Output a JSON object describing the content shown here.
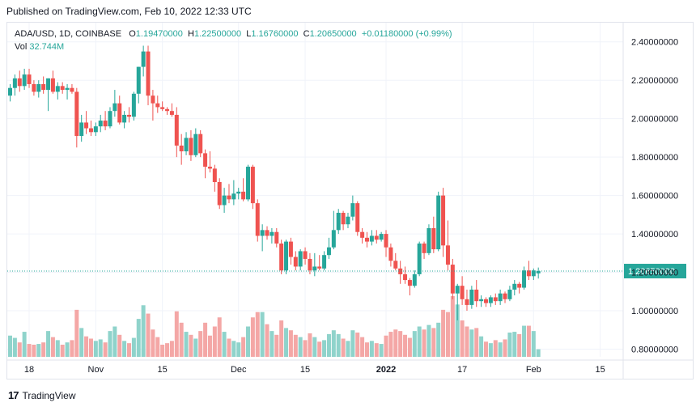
{
  "header": {
    "published": "Published on TradingView.com, Feb 10, 2022 12:33 UTC"
  },
  "legend": {
    "symbol": "ADA/USD, 1D, COINBASE",
    "o_label": "O",
    "o": "1.19470000",
    "h_label": "H",
    "h": "1.22500000",
    "l_label": "L",
    "l": "1.16760000",
    "c_label": "C",
    "c": "1.20650000",
    "change": "+0.01180000 (+0.99%)",
    "vol_label": "Vol",
    "vol": "32.744M"
  },
  "footer": {
    "brand": "TradingView",
    "logo": "17"
  },
  "colors": {
    "up": "#26a69a",
    "down": "#ef5350",
    "up_vol": "#8fd3cb",
    "down_vol": "#f4a7a6",
    "price_line": "#26a69a"
  },
  "chart_data": {
    "type": "candlestick",
    "symbol": "ADA/USD, 1D, COINBASE",
    "ylim": [
      0.76,
      2.5
    ],
    "y_ticks": [
      0.8,
      1.0,
      1.2,
      1.4,
      1.6,
      1.8,
      2.0,
      2.2,
      2.4
    ],
    "y_tick_labels": [
      "0.80000000",
      "1.00000000",
      "1.20000000",
      "1.40000000",
      "1.60000000",
      "1.80000000",
      "2.00000000",
      "2.20000000",
      "2.40000000"
    ],
    "last_price": 1.2065,
    "last_price_label": "1.20650000",
    "x_ticks": [
      {
        "index": 4,
        "label": "18"
      },
      {
        "index": 18,
        "label": "Nov"
      },
      {
        "index": 32,
        "label": "15"
      },
      {
        "index": 48,
        "label": "Dec"
      },
      {
        "index": 62,
        "label": "15"
      },
      {
        "index": 79,
        "label": "2022"
      },
      {
        "index": 95,
        "label": "17"
      },
      {
        "index": 110,
        "label": "Feb"
      },
      {
        "index": 124,
        "label": "15"
      }
    ],
    "x_tick_bold": [
      "2022"
    ],
    "candles": [
      {
        "o": 2.12,
        "h": 2.18,
        "l": 2.09,
        "c": 2.16,
        "v": 28
      },
      {
        "o": 2.16,
        "h": 2.23,
        "l": 2.12,
        "c": 2.21,
        "v": 25
      },
      {
        "o": 2.21,
        "h": 2.25,
        "l": 2.14,
        "c": 2.17,
        "v": 19
      },
      {
        "o": 2.17,
        "h": 2.26,
        "l": 2.15,
        "c": 2.23,
        "v": 33
      },
      {
        "o": 2.23,
        "h": 2.26,
        "l": 2.16,
        "c": 2.18,
        "v": 17
      },
      {
        "o": 2.18,
        "h": 2.2,
        "l": 2.12,
        "c": 2.14,
        "v": 16
      },
      {
        "o": 2.14,
        "h": 2.2,
        "l": 2.11,
        "c": 2.18,
        "v": 17
      },
      {
        "o": 2.18,
        "h": 2.22,
        "l": 2.13,
        "c": 2.15,
        "v": 19
      },
      {
        "o": 2.15,
        "h": 2.21,
        "l": 2.04,
        "c": 2.21,
        "v": 34
      },
      {
        "o": 2.21,
        "h": 2.25,
        "l": 2.13,
        "c": 2.14,
        "v": 26
      },
      {
        "o": 2.14,
        "h": 2.19,
        "l": 2.1,
        "c": 2.17,
        "v": 22
      },
      {
        "o": 2.17,
        "h": 2.19,
        "l": 2.13,
        "c": 2.15,
        "v": 16
      },
      {
        "o": 2.15,
        "h": 2.18,
        "l": 2.1,
        "c": 2.16,
        "v": 19
      },
      {
        "o": 2.16,
        "h": 2.18,
        "l": 2.13,
        "c": 2.14,
        "v": 22
      },
      {
        "o": 2.14,
        "h": 2.16,
        "l": 1.85,
        "c": 1.91,
        "v": 62
      },
      {
        "o": 1.91,
        "h": 2.02,
        "l": 1.88,
        "c": 1.98,
        "v": 38
      },
      {
        "o": 1.98,
        "h": 2.04,
        "l": 1.92,
        "c": 1.95,
        "v": 27
      },
      {
        "o": 1.95,
        "h": 1.99,
        "l": 1.91,
        "c": 1.93,
        "v": 24
      },
      {
        "o": 1.93,
        "h": 1.98,
        "l": 1.91,
        "c": 1.96,
        "v": 21
      },
      {
        "o": 1.96,
        "h": 2.02,
        "l": 1.93,
        "c": 1.99,
        "v": 23
      },
      {
        "o": 1.99,
        "h": 2.04,
        "l": 1.94,
        "c": 1.96,
        "v": 19
      },
      {
        "o": 1.96,
        "h": 2.06,
        "l": 1.95,
        "c": 2.04,
        "v": 34
      },
      {
        "o": 2.04,
        "h": 2.15,
        "l": 2.01,
        "c": 2.08,
        "v": 40
      },
      {
        "o": 2.08,
        "h": 2.12,
        "l": 1.97,
        "c": 1.98,
        "v": 29
      },
      {
        "o": 1.98,
        "h": 2.04,
        "l": 1.95,
        "c": 2.02,
        "v": 21
      },
      {
        "o": 2.02,
        "h": 2.06,
        "l": 1.98,
        "c": 2.01,
        "v": 18
      },
      {
        "o": 2.01,
        "h": 2.14,
        "l": 1.99,
        "c": 2.13,
        "v": 25
      },
      {
        "o": 2.13,
        "h": 2.27,
        "l": 2.08,
        "c": 2.27,
        "v": 50
      },
      {
        "o": 2.27,
        "h": 2.38,
        "l": 2.22,
        "c": 2.35,
        "v": 68
      },
      {
        "o": 2.35,
        "h": 2.38,
        "l": 2.07,
        "c": 2.12,
        "v": 57
      },
      {
        "o": 2.12,
        "h": 2.15,
        "l": 1.99,
        "c": 2.08,
        "v": 36
      },
      {
        "o": 2.08,
        "h": 2.12,
        "l": 2.03,
        "c": 2.06,
        "v": 26
      },
      {
        "o": 2.06,
        "h": 2.09,
        "l": 2.04,
        "c": 2.05,
        "v": 16
      },
      {
        "o": 2.05,
        "h": 2.06,
        "l": 2.02,
        "c": 2.04,
        "v": 18
      },
      {
        "o": 2.04,
        "h": 2.08,
        "l": 2.01,
        "c": 2.02,
        "v": 21
      },
      {
        "o": 2.02,
        "h": 2.06,
        "l": 1.8,
        "c": 1.86,
        "v": 60
      },
      {
        "o": 1.86,
        "h": 1.92,
        "l": 1.76,
        "c": 1.83,
        "v": 45
      },
      {
        "o": 1.83,
        "h": 1.93,
        "l": 1.81,
        "c": 1.9,
        "v": 33
      },
      {
        "o": 1.9,
        "h": 1.94,
        "l": 1.78,
        "c": 1.81,
        "v": 29
      },
      {
        "o": 1.81,
        "h": 1.95,
        "l": 1.8,
        "c": 1.92,
        "v": 24
      },
      {
        "o": 1.92,
        "h": 1.94,
        "l": 1.8,
        "c": 1.82,
        "v": 34
      },
      {
        "o": 1.82,
        "h": 1.84,
        "l": 1.69,
        "c": 1.75,
        "v": 45
      },
      {
        "o": 1.75,
        "h": 1.83,
        "l": 1.72,
        "c": 1.74,
        "v": 28
      },
      {
        "o": 1.74,
        "h": 1.76,
        "l": 1.62,
        "c": 1.67,
        "v": 40
      },
      {
        "o": 1.67,
        "h": 1.69,
        "l": 1.53,
        "c": 1.55,
        "v": 52
      },
      {
        "o": 1.55,
        "h": 1.64,
        "l": 1.51,
        "c": 1.6,
        "v": 33
      },
      {
        "o": 1.6,
        "h": 1.66,
        "l": 1.56,
        "c": 1.58,
        "v": 24
      },
      {
        "o": 1.58,
        "h": 1.68,
        "l": 1.55,
        "c": 1.61,
        "v": 21
      },
      {
        "o": 1.61,
        "h": 1.64,
        "l": 1.58,
        "c": 1.62,
        "v": 19
      },
      {
        "o": 1.62,
        "h": 1.69,
        "l": 1.57,
        "c": 1.58,
        "v": 26
      },
      {
        "o": 1.58,
        "h": 1.76,
        "l": 1.57,
        "c": 1.75,
        "v": 40
      },
      {
        "o": 1.75,
        "h": 1.76,
        "l": 1.53,
        "c": 1.56,
        "v": 52
      },
      {
        "o": 1.56,
        "h": 1.58,
        "l": 1.36,
        "c": 1.39,
        "v": 59
      },
      {
        "o": 1.39,
        "h": 1.45,
        "l": 1.31,
        "c": 1.42,
        "v": 59
      },
      {
        "o": 1.42,
        "h": 1.44,
        "l": 1.37,
        "c": 1.39,
        "v": 43
      },
      {
        "o": 1.39,
        "h": 1.43,
        "l": 1.35,
        "c": 1.41,
        "v": 34
      },
      {
        "o": 1.41,
        "h": 1.43,
        "l": 1.33,
        "c": 1.35,
        "v": 29
      },
      {
        "o": 1.35,
        "h": 1.37,
        "l": 1.19,
        "c": 1.21,
        "v": 48
      },
      {
        "o": 1.21,
        "h": 1.37,
        "l": 1.19,
        "c": 1.36,
        "v": 38
      },
      {
        "o": 1.36,
        "h": 1.38,
        "l": 1.24,
        "c": 1.28,
        "v": 35
      },
      {
        "o": 1.28,
        "h": 1.31,
        "l": 1.21,
        "c": 1.23,
        "v": 29
      },
      {
        "o": 1.23,
        "h": 1.32,
        "l": 1.21,
        "c": 1.31,
        "v": 26
      },
      {
        "o": 1.31,
        "h": 1.33,
        "l": 1.24,
        "c": 1.27,
        "v": 22
      },
      {
        "o": 1.27,
        "h": 1.3,
        "l": 1.19,
        "c": 1.21,
        "v": 31
      },
      {
        "o": 1.21,
        "h": 1.3,
        "l": 1.18,
        "c": 1.23,
        "v": 26
      },
      {
        "o": 1.23,
        "h": 1.29,
        "l": 1.21,
        "c": 1.22,
        "v": 20
      },
      {
        "o": 1.22,
        "h": 1.31,
        "l": 1.21,
        "c": 1.29,
        "v": 22
      },
      {
        "o": 1.29,
        "h": 1.38,
        "l": 1.27,
        "c": 1.33,
        "v": 30
      },
      {
        "o": 1.33,
        "h": 1.52,
        "l": 1.32,
        "c": 1.42,
        "v": 35
      },
      {
        "o": 1.42,
        "h": 1.53,
        "l": 1.4,
        "c": 1.51,
        "v": 30
      },
      {
        "o": 1.51,
        "h": 1.52,
        "l": 1.42,
        "c": 1.45,
        "v": 24
      },
      {
        "o": 1.45,
        "h": 1.51,
        "l": 1.43,
        "c": 1.49,
        "v": 21
      },
      {
        "o": 1.49,
        "h": 1.6,
        "l": 1.47,
        "c": 1.56,
        "v": 35
      },
      {
        "o": 1.56,
        "h": 1.57,
        "l": 1.39,
        "c": 1.41,
        "v": 32
      },
      {
        "o": 1.41,
        "h": 1.43,
        "l": 1.35,
        "c": 1.38,
        "v": 26
      },
      {
        "o": 1.38,
        "h": 1.41,
        "l": 1.33,
        "c": 1.36,
        "v": 19
      },
      {
        "o": 1.36,
        "h": 1.42,
        "l": 1.34,
        "c": 1.39,
        "v": 21
      },
      {
        "o": 1.39,
        "h": 1.42,
        "l": 1.35,
        "c": 1.37,
        "v": 18
      },
      {
        "o": 1.37,
        "h": 1.41,
        "l": 1.36,
        "c": 1.4,
        "v": 17
      },
      {
        "o": 1.4,
        "h": 1.42,
        "l": 1.28,
        "c": 1.33,
        "v": 28
      },
      {
        "o": 1.33,
        "h": 1.35,
        "l": 1.23,
        "c": 1.26,
        "v": 33
      },
      {
        "o": 1.26,
        "h": 1.3,
        "l": 1.21,
        "c": 1.22,
        "v": 36
      },
      {
        "o": 1.22,
        "h": 1.26,
        "l": 1.14,
        "c": 1.19,
        "v": 34
      },
      {
        "o": 1.19,
        "h": 1.23,
        "l": 1.14,
        "c": 1.16,
        "v": 29
      },
      {
        "o": 1.16,
        "h": 1.17,
        "l": 1.08,
        "c": 1.13,
        "v": 25
      },
      {
        "o": 1.13,
        "h": 1.21,
        "l": 1.12,
        "c": 1.19,
        "v": 34
      },
      {
        "o": 1.19,
        "h": 1.36,
        "l": 1.18,
        "c": 1.35,
        "v": 40
      },
      {
        "o": 1.35,
        "h": 1.36,
        "l": 1.27,
        "c": 1.3,
        "v": 36
      },
      {
        "o": 1.3,
        "h": 1.45,
        "l": 1.29,
        "c": 1.43,
        "v": 42
      },
      {
        "o": 1.43,
        "h": 1.49,
        "l": 1.3,
        "c": 1.32,
        "v": 38
      },
      {
        "o": 1.32,
        "h": 1.62,
        "l": 1.31,
        "c": 1.6,
        "v": 45
      },
      {
        "o": 1.6,
        "h": 1.64,
        "l": 1.28,
        "c": 1.34,
        "v": 62
      },
      {
        "o": 1.34,
        "h": 1.47,
        "l": 1.21,
        "c": 1.24,
        "v": 59
      },
      {
        "o": 1.24,
        "h": 1.27,
        "l": 1.06,
        "c": 1.09,
        "v": 80
      },
      {
        "o": 1.09,
        "h": 1.14,
        "l": 0.95,
        "c": 1.13,
        "v": 69
      },
      {
        "o": 1.13,
        "h": 1.18,
        "l": 1.03,
        "c": 1.06,
        "v": 48
      },
      {
        "o": 1.06,
        "h": 1.11,
        "l": 1.0,
        "c": 1.03,
        "v": 40
      },
      {
        "o": 1.03,
        "h": 1.13,
        "l": 1.01,
        "c": 1.11,
        "v": 36
      },
      {
        "o": 1.11,
        "h": 1.16,
        "l": 1.02,
        "c": 1.05,
        "v": 38
      },
      {
        "o": 1.05,
        "h": 1.08,
        "l": 1.02,
        "c": 1.06,
        "v": 27
      },
      {
        "o": 1.06,
        "h": 1.07,
        "l": 1.02,
        "c": 1.04,
        "v": 20
      },
      {
        "o": 1.04,
        "h": 1.08,
        "l": 1.02,
        "c": 1.07,
        "v": 18
      },
      {
        "o": 1.07,
        "h": 1.09,
        "l": 1.03,
        "c": 1.05,
        "v": 22
      },
      {
        "o": 1.05,
        "h": 1.11,
        "l": 1.03,
        "c": 1.09,
        "v": 19
      },
      {
        "o": 1.09,
        "h": 1.1,
        "l": 1.04,
        "c": 1.06,
        "v": 23
      },
      {
        "o": 1.06,
        "h": 1.13,
        "l": 1.05,
        "c": 1.11,
        "v": 32
      },
      {
        "o": 1.11,
        "h": 1.16,
        "l": 1.08,
        "c": 1.14,
        "v": 33
      },
      {
        "o": 1.14,
        "h": 1.15,
        "l": 1.09,
        "c": 1.12,
        "v": 30
      },
      {
        "o": 1.12,
        "h": 1.23,
        "l": 1.11,
        "c": 1.21,
        "v": 41
      },
      {
        "o": 1.21,
        "h": 1.26,
        "l": 1.16,
        "c": 1.18,
        "v": 41
      },
      {
        "o": 1.18,
        "h": 1.22,
        "l": 1.16,
        "c": 1.21,
        "v": 34
      },
      {
        "o": 1.1947,
        "h": 1.225,
        "l": 1.1676,
        "c": 1.2065,
        "v": 10
      }
    ]
  }
}
